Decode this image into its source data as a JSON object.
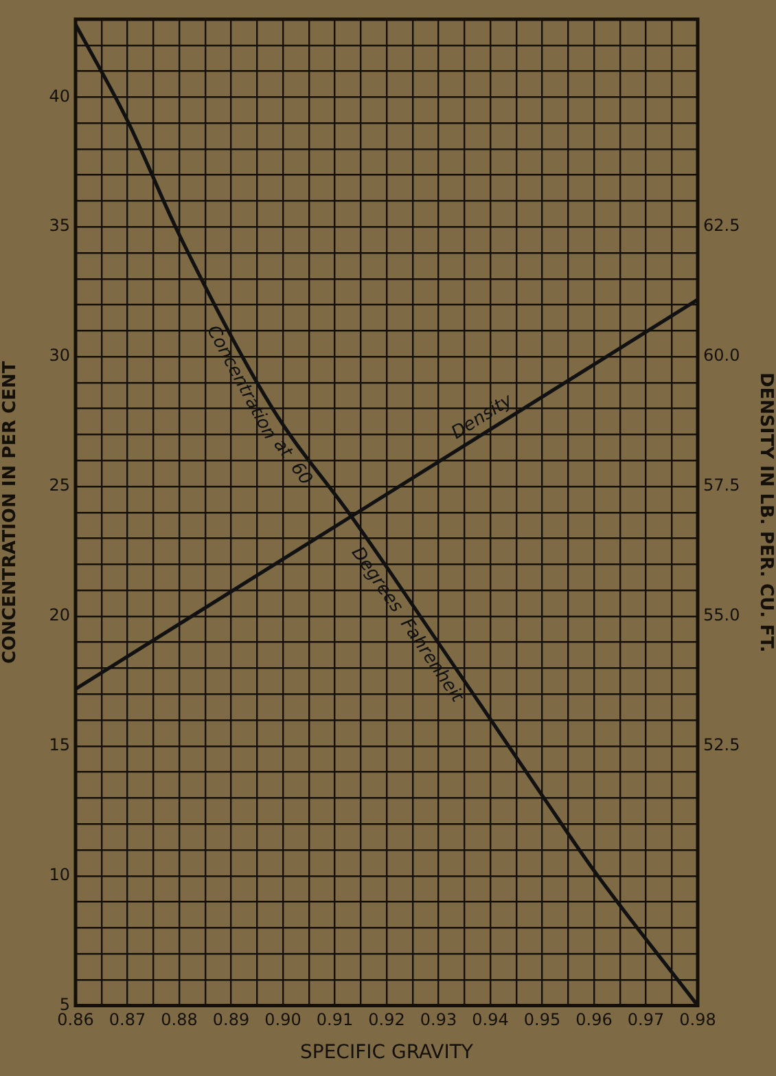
{
  "chart_data": {
    "type": "line",
    "xlabel": "SPECIFIC GRAVITY",
    "ylabel": "CONCENTRATION IN PER CENT",
    "y2label": "DENSITY IN LB. PER. CU. FT.",
    "series": [
      {
        "name": "Concentration at 60 Degrees Fahrenheit",
        "color": "#111111",
        "x": [
          0.86,
          0.87,
          0.88,
          0.898,
          0.913,
          0.92,
          0.95,
          0.96,
          0.98
        ],
        "values": [
          42.8,
          39.1,
          34.7,
          28.0,
          23.9,
          21.9,
          13.1,
          10.2,
          5.0
        ]
      },
      {
        "name": "Density",
        "color": "#111111",
        "axis": "y2",
        "x": [
          0.86,
          0.98
        ],
        "values": [
          53.6,
          61.1
        ]
      }
    ],
    "xlim": [
      0.86,
      0.98
    ],
    "xticks": [
      0.86,
      {
        "value": 0.865,
        "label": null
      },
      0.87,
      {
        "value": 0.875,
        "label": null
      },
      0.88,
      {
        "value": 0.885,
        "label": null
      },
      0.89,
      {
        "value": 0.895,
        "label": null
      },
      {
        "value": 0.9,
        "label": "0.90"
      },
      {
        "value": 0.905,
        "label": null
      },
      0.91,
      {
        "value": 0.915,
        "label": null
      },
      0.92,
      {
        "value": 0.925,
        "label": null
      },
      0.93,
      {
        "value": 0.935,
        "label": null
      },
      0.94,
      {
        "value": 0.945,
        "label": null
      },
      0.95,
      {
        "value": 0.955,
        "label": null
      },
      0.96,
      {
        "value": 0.965,
        "label": null
      },
      0.97,
      {
        "value": 0.975,
        "label": null
      },
      0.98
    ],
    "ylim": [
      5,
      43
    ],
    "yticks": [
      5,
      {
        "value": 6,
        "label": null
      },
      {
        "value": 7,
        "label": null
      },
      {
        "value": 8,
        "label": null
      },
      {
        "value": 9,
        "label": null
      },
      10,
      {
        "value": 11,
        "label": null
      },
      {
        "value": 12,
        "label": null
      },
      {
        "value": 13,
        "label": null
      },
      {
        "value": 14,
        "label": null
      },
      15,
      {
        "value": 16,
        "label": null
      },
      {
        "value": 17,
        "label": null
      },
      {
        "value": 18,
        "label": null
      },
      {
        "value": 19,
        "label": null
      },
      20,
      {
        "value": 21,
        "label": null
      },
      {
        "value": 22,
        "label": null
      },
      {
        "value": 23,
        "label": null
      },
      {
        "value": 24,
        "label": null
      },
      25,
      {
        "value": 26,
        "label": null
      },
      {
        "value": 27,
        "label": null
      },
      {
        "value": 28,
        "label": null
      },
      {
        "value": 29,
        "label": null
      },
      30,
      {
        "value": 31,
        "label": null
      },
      {
        "value": 32,
        "label": null
      },
      {
        "value": 33,
        "label": null
      },
      {
        "value": 34,
        "label": null
      },
      35,
      {
        "value": 36,
        "label": null
      },
      {
        "value": 37,
        "label": null
      },
      {
        "value": 38,
        "label": null
      },
      {
        "value": 39,
        "label": null
      },
      40,
      {
        "value": 41,
        "label": null
      },
      {
        "value": 42,
        "label": null
      },
      {
        "value": 43,
        "label": null
      }
    ],
    "y2lim": [
      47.5,
      66.5
    ],
    "y2ticks": [
      52.5,
      {
        "value": 55,
        "label": "55.0"
      },
      57.5,
      {
        "value": 60,
        "label": "60.0"
      },
      62.5
    ],
    "grid": true,
    "legend": false,
    "marker": "none",
    "line_style": "solid"
  }
}
